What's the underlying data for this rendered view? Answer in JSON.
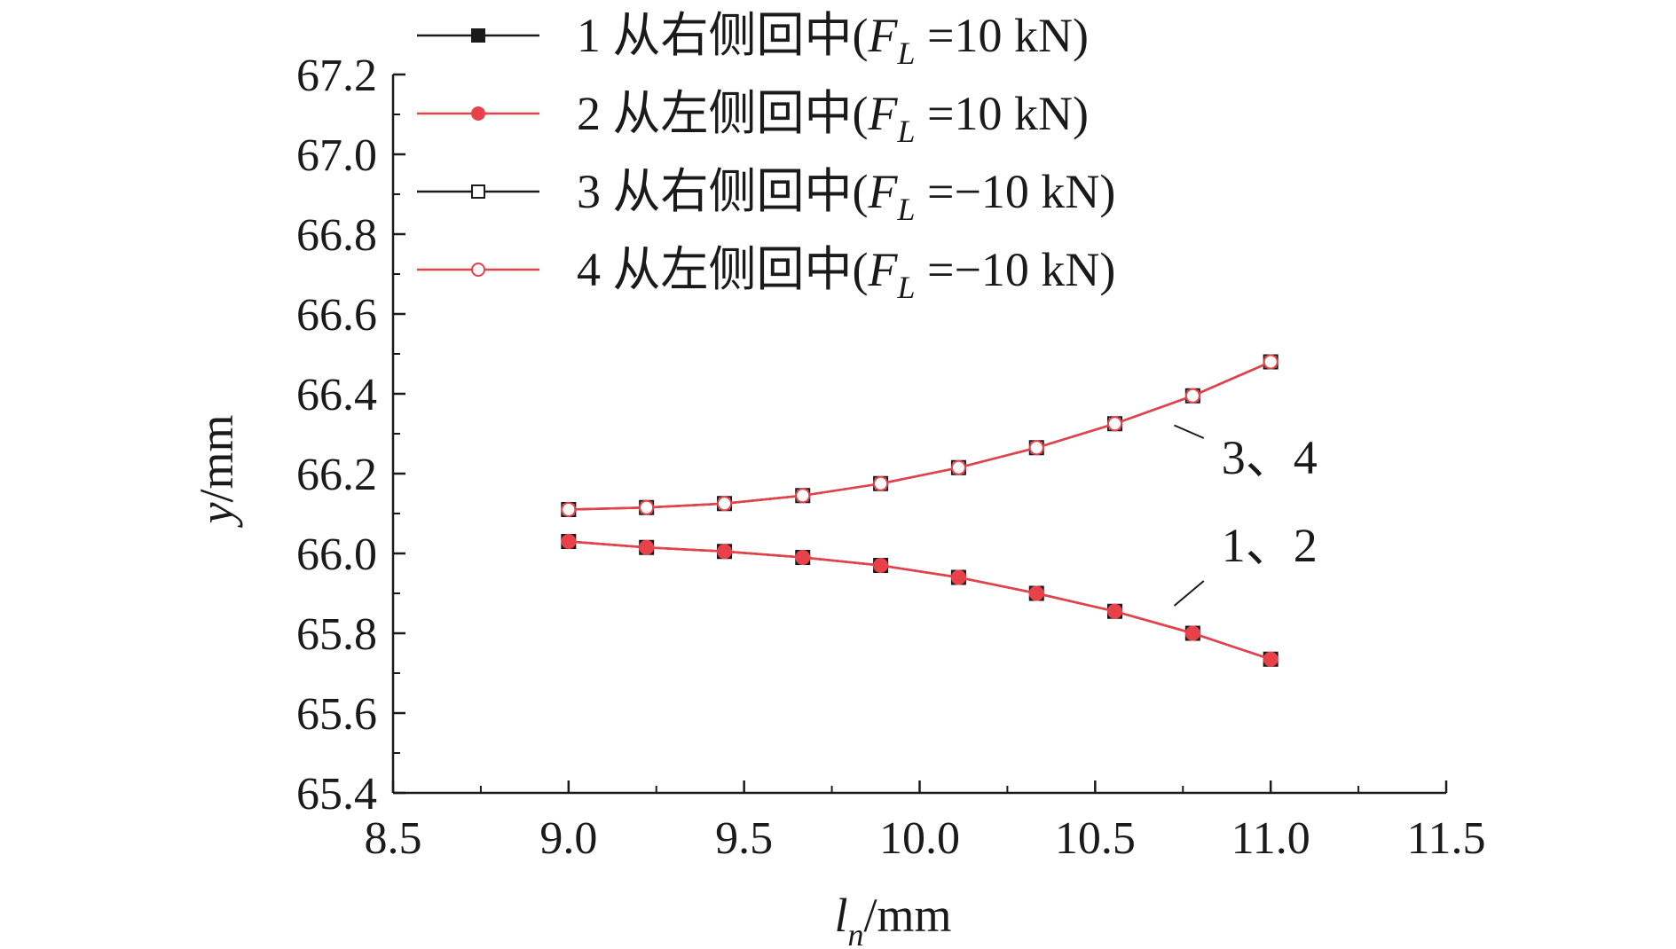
{
  "chart_data": {
    "type": "line",
    "x": [
      9.0,
      9.222,
      9.444,
      9.667,
      9.889,
      10.111,
      10.333,
      10.556,
      10.778,
      11.0
    ],
    "series": [
      {
        "id": "s1",
        "label": "1 从右侧回中(F_L =10 kN)",
        "prefix": "1 从右侧回中(",
        "var": "F",
        "sub": "L",
        "suffix": " =10 kN)",
        "marker": "square",
        "filled": true,
        "color": "#1a1a1a",
        "values": [
          66.03,
          66.015,
          66.005,
          65.99,
          65.97,
          65.94,
          65.9,
          65.855,
          65.8,
          65.735
        ]
      },
      {
        "id": "s2",
        "label": "2 从左侧回中(F_L =10 kN)",
        "prefix": "2 从左侧回中(",
        "var": "F",
        "sub": "L",
        "suffix": " =10 kN)",
        "marker": "circle",
        "filled": true,
        "color": "#e8414a",
        "values": [
          66.03,
          66.015,
          66.005,
          65.99,
          65.97,
          65.94,
          65.9,
          65.855,
          65.8,
          65.735
        ]
      },
      {
        "id": "s3",
        "label": "3 从右侧回中(F_L =−10 kN)",
        "prefix": "3 从右侧回中(",
        "var": "F",
        "sub": "L",
        "suffix": " =−10 kN)",
        "marker": "square",
        "filled": false,
        "color": "#1a1a1a",
        "values": [
          66.11,
          66.115,
          66.125,
          66.145,
          66.175,
          66.215,
          66.265,
          66.325,
          66.395,
          66.48
        ]
      },
      {
        "id": "s4",
        "label": "4 从左侧回中(F_L =−10 kN)",
        "prefix": "4 从左侧回中(",
        "var": "F",
        "sub": "L",
        "suffix": " =−10 kN)",
        "marker": "circle",
        "filled": false,
        "color": "#e8414a",
        "values": [
          66.11,
          66.115,
          66.125,
          66.145,
          66.175,
          66.215,
          66.265,
          66.325,
          66.395,
          66.48
        ]
      }
    ],
    "xlim": [
      8.5,
      11.5
    ],
    "ylim": [
      65.4,
      67.2
    ],
    "xticks": [
      "8.5",
      "9.0",
      "9.5",
      "10.0",
      "10.5",
      "11.0",
      "11.5"
    ],
    "yticks": [
      "65.4",
      "65.6",
      "65.8",
      "66.0",
      "66.2",
      "66.4",
      "66.6",
      "66.8",
      "67.0",
      "67.2"
    ],
    "xlabel": {
      "var": "l",
      "sub": "n",
      "unit": "/mm"
    },
    "ylabel": {
      "var": "y",
      "unit": "/mm"
    },
    "annotations": [
      {
        "text": "3、4",
        "x": 10.86,
        "y": 66.2,
        "leader_to": [
          10.7,
          66.33
        ]
      },
      {
        "text": "1、2",
        "x": 10.86,
        "y": 65.98,
        "leader_to": [
          10.7,
          65.86
        ]
      }
    ],
    "legend_position": "top-left",
    "grid": false
  }
}
